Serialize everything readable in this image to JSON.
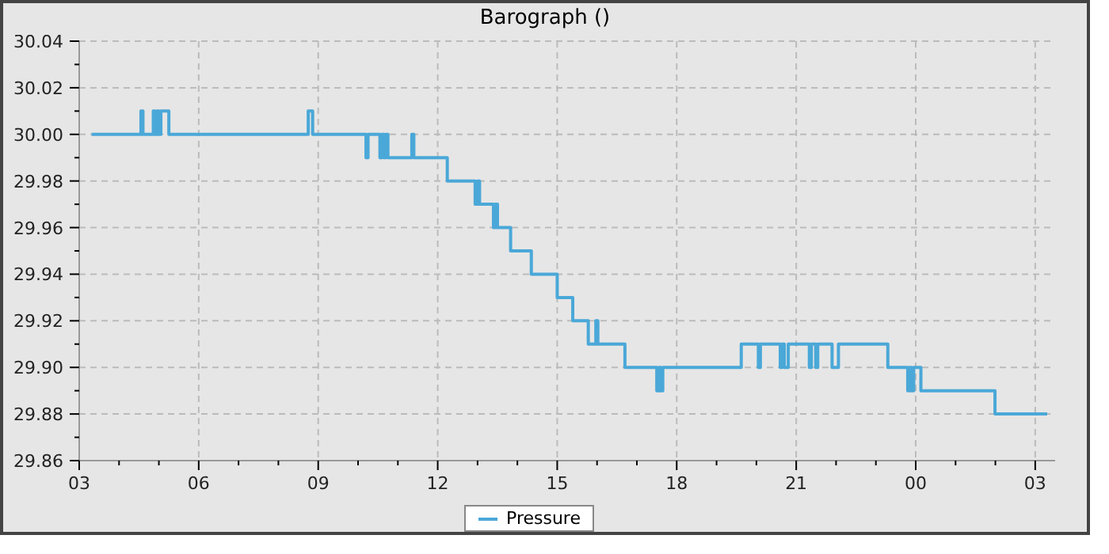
{
  "chart_data": {
    "type": "step",
    "title": "Barograph ()",
    "x": [
      3.31,
      4.55,
      4.6,
      4.86,
      4.9,
      4.95,
      5.0,
      5.05,
      5.25,
      8.75,
      8.86,
      10.2,
      10.25,
      10.55,
      10.6,
      10.65,
      10.7,
      10.75,
      11.35,
      11.4,
      12.24,
      12.94,
      13.0,
      13.05,
      13.1,
      13.4,
      13.45,
      13.5,
      13.83,
      14.35,
      15.0,
      15.39,
      15.78,
      15.97,
      16.02,
      16.7,
      17.5,
      17.55,
      17.6,
      17.65,
      17.72,
      19.62,
      20.05,
      20.1,
      20.6,
      20.65,
      20.7,
      20.8,
      21.33,
      21.38,
      21.49,
      21.54,
      21.9,
      22.06,
      23.3,
      23.8,
      23.85,
      23.9,
      23.95,
      24.13,
      25.99,
      27.3
    ],
    "series": [
      {
        "name": "Pressure",
        "color": "#4aa8d8",
        "values": [
          30.0,
          30.01,
          30.0,
          30.01,
          30.0,
          30.01,
          30.0,
          30.01,
          30.0,
          30.01,
          30.0,
          29.99,
          30.0,
          29.99,
          30.0,
          29.99,
          30.0,
          29.99,
          30.0,
          29.99,
          29.98,
          29.97,
          29.98,
          29.97,
          29.97,
          29.96,
          29.97,
          29.96,
          29.95,
          29.94,
          29.93,
          29.92,
          29.91,
          29.92,
          29.91,
          29.9,
          29.89,
          29.9,
          29.89,
          29.9,
          29.9,
          29.91,
          29.9,
          29.91,
          29.9,
          29.91,
          29.9,
          29.91,
          29.9,
          29.91,
          29.9,
          29.91,
          29.9,
          29.91,
          29.9,
          29.89,
          29.9,
          29.89,
          29.9,
          29.89,
          29.88,
          29.88
        ]
      }
    ],
    "xlim": [
      3,
      27.5
    ],
    "xticks": [
      {
        "value": 3,
        "label": "03"
      },
      {
        "value": 4,
        "label": null
      },
      {
        "value": 5,
        "label": null
      },
      {
        "value": 6,
        "label": "06"
      },
      {
        "value": 7,
        "label": null
      },
      {
        "value": 8,
        "label": null
      },
      {
        "value": 9,
        "label": "09"
      },
      {
        "value": 10,
        "label": null
      },
      {
        "value": 11,
        "label": null
      },
      {
        "value": 12,
        "label": "12"
      },
      {
        "value": 13,
        "label": null
      },
      {
        "value": 14,
        "label": null
      },
      {
        "value": 15,
        "label": "15"
      },
      {
        "value": 16,
        "label": null
      },
      {
        "value": 17,
        "label": null
      },
      {
        "value": 18,
        "label": "18"
      },
      {
        "value": 19,
        "label": null
      },
      {
        "value": 20,
        "label": null
      },
      {
        "value": 21,
        "label": "21"
      },
      {
        "value": 22,
        "label": null
      },
      {
        "value": 23,
        "label": null
      },
      {
        "value": 24,
        "label": "00"
      },
      {
        "value": 25,
        "label": null
      },
      {
        "value": 26,
        "label": null
      },
      {
        "value": 27,
        "label": "03"
      }
    ],
    "ylim": [
      29.86,
      30.04
    ],
    "yticks": [
      {
        "value": 29.86,
        "label": "29.86"
      },
      {
        "value": 29.87,
        "label": null
      },
      {
        "value": 29.88,
        "label": "29.88"
      },
      {
        "value": 29.89,
        "label": null
      },
      {
        "value": 29.9,
        "label": "29.90"
      },
      {
        "value": 29.91,
        "label": null
      },
      {
        "value": 29.92,
        "label": "29.92"
      },
      {
        "value": 29.93,
        "label": null
      },
      {
        "value": 29.94,
        "label": "29.94"
      },
      {
        "value": 29.95,
        "label": null
      },
      {
        "value": 29.96,
        "label": "29.96"
      },
      {
        "value": 29.97,
        "label": null
      },
      {
        "value": 29.98,
        "label": "29.98"
      },
      {
        "value": 29.99,
        "label": null
      },
      {
        "value": 30.0,
        "label": "30.00"
      },
      {
        "value": 30.01,
        "label": null
      },
      {
        "value": 30.02,
        "label": "30.02"
      },
      {
        "value": 30.03,
        "label": null
      },
      {
        "value": 30.04,
        "label": "30.04"
      }
    ],
    "grid": true,
    "legend": "bottom",
    "marker": "none",
    "line_style": "solid"
  }
}
